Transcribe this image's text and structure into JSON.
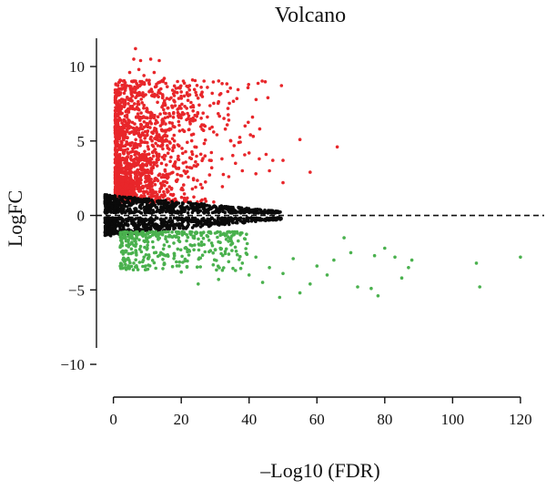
{
  "chart_data": {
    "type": "scatter",
    "title": "Volcano",
    "xlabel": "–Log10 (FDR)",
    "ylabel": "LogFC",
    "xlim": [
      -5,
      127
    ],
    "ylim": [
      -12.2,
      11.9
    ],
    "xticks": [
      0,
      20,
      40,
      60,
      80,
      100,
      120
    ],
    "yticks": [
      -10,
      -5,
      0,
      5,
      10
    ],
    "xtick_labels": [
      "0",
      "20",
      "40",
      "60",
      "80",
      "100",
      "120"
    ],
    "ytick_labels": [
      "−10",
      "−5",
      "0",
      "5",
      "10"
    ],
    "reference_line": {
      "y": 0,
      "style": "dashed"
    },
    "grid": false,
    "legend": "none",
    "series": [
      {
        "color": "#e8262a",
        "points": [
          [
            6.5,
            11.2
          ],
          [
            6.0,
            10.5
          ],
          [
            8.0,
            10.4
          ],
          [
            11.0,
            10.5
          ],
          [
            13.5,
            10.4
          ],
          [
            4.8,
            9.6
          ],
          [
            7.5,
            9.8
          ],
          [
            9.0,
            9.4
          ],
          [
            12.0,
            9.6
          ],
          [
            15.0,
            9.2
          ],
          [
            20.0,
            8.3
          ],
          [
            18.0,
            8.7
          ],
          [
            14.0,
            8.5
          ],
          [
            10.5,
            8.9
          ],
          [
            5.5,
            7.7
          ],
          [
            7.0,
            7.2
          ],
          [
            9.0,
            7.4
          ],
          [
            11.0,
            6.9
          ],
          [
            13.0,
            7.6
          ],
          [
            16.0,
            6.6
          ],
          [
            19.0,
            6.9
          ],
          [
            22.0,
            6.5
          ],
          [
            17.0,
            7.9
          ],
          [
            4.0,
            6.0
          ],
          [
            6.0,
            5.6
          ],
          [
            8.0,
            5.9
          ],
          [
            10.0,
            5.4
          ],
          [
            12.0,
            5.7
          ],
          [
            14.0,
            5.2
          ],
          [
            18.0,
            5.0
          ],
          [
            24.0,
            4.6
          ],
          [
            27.0,
            4.0
          ],
          [
            32.0,
            3.8
          ],
          [
            36.0,
            3.5
          ],
          [
            40.0,
            4.2
          ],
          [
            43.0,
            3.8
          ],
          [
            45.0,
            4.1
          ],
          [
            47.0,
            3.7
          ],
          [
            38.0,
            3.0
          ],
          [
            29.0,
            3.2
          ],
          [
            34.0,
            2.6
          ],
          [
            42.0,
            2.8
          ],
          [
            46.0,
            3.0
          ],
          [
            55.0,
            5.1
          ],
          [
            66.0,
            4.6
          ],
          [
            50.0,
            3.7
          ],
          [
            58.0,
            2.9
          ],
          [
            50.0,
            2.2
          ],
          [
            41.0,
            6.6
          ],
          [
            27.0,
            6.0
          ],
          [
            33.0,
            5.8
          ],
          [
            37.0,
            4.9
          ]
        ]
      },
      {
        "color": "#4ab14e",
        "points": [
          [
            6.0,
            -2.0
          ],
          [
            10.0,
            -2.2
          ],
          [
            14.0,
            -2.5
          ],
          [
            18.0,
            -2.7
          ],
          [
            22.0,
            -2.4
          ],
          [
            26.0,
            -2.0
          ],
          [
            30.0,
            -2.3
          ],
          [
            34.0,
            -2.6
          ],
          [
            38.0,
            -3.2
          ],
          [
            42.0,
            -2.8
          ],
          [
            46.0,
            -3.5
          ],
          [
            50.0,
            -3.9
          ],
          [
            44.0,
            -4.5
          ],
          [
            40.0,
            -4.0
          ],
          [
            36.0,
            -3.7
          ],
          [
            31.0,
            -4.3
          ],
          [
            25.0,
            -4.6
          ],
          [
            20.0,
            -3.8
          ],
          [
            15.0,
            -3.2
          ],
          [
            9.0,
            -2.8
          ],
          [
            49.0,
            -5.5
          ],
          [
            55.0,
            -5.2
          ],
          [
            58.0,
            -4.6
          ],
          [
            63.0,
            -4.0
          ],
          [
            65.0,
            -3.0
          ],
          [
            68.0,
            -1.5
          ],
          [
            70.0,
            -2.5
          ],
          [
            72.0,
            -4.8
          ],
          [
            76.0,
            -4.9
          ],
          [
            77.0,
            -2.7
          ],
          [
            78.0,
            -5.4
          ],
          [
            80.0,
            -2.2
          ],
          [
            83.0,
            -2.8
          ],
          [
            85.0,
            -4.2
          ],
          [
            87.0,
            -3.5
          ],
          [
            88.0,
            -3.0
          ],
          [
            107.0,
            -3.2
          ],
          [
            108.0,
            -4.8
          ],
          [
            120.0,
            -2.8
          ],
          [
            60.0,
            -3.4
          ],
          [
            53.0,
            -2.9
          ]
        ]
      }
    ]
  }
}
